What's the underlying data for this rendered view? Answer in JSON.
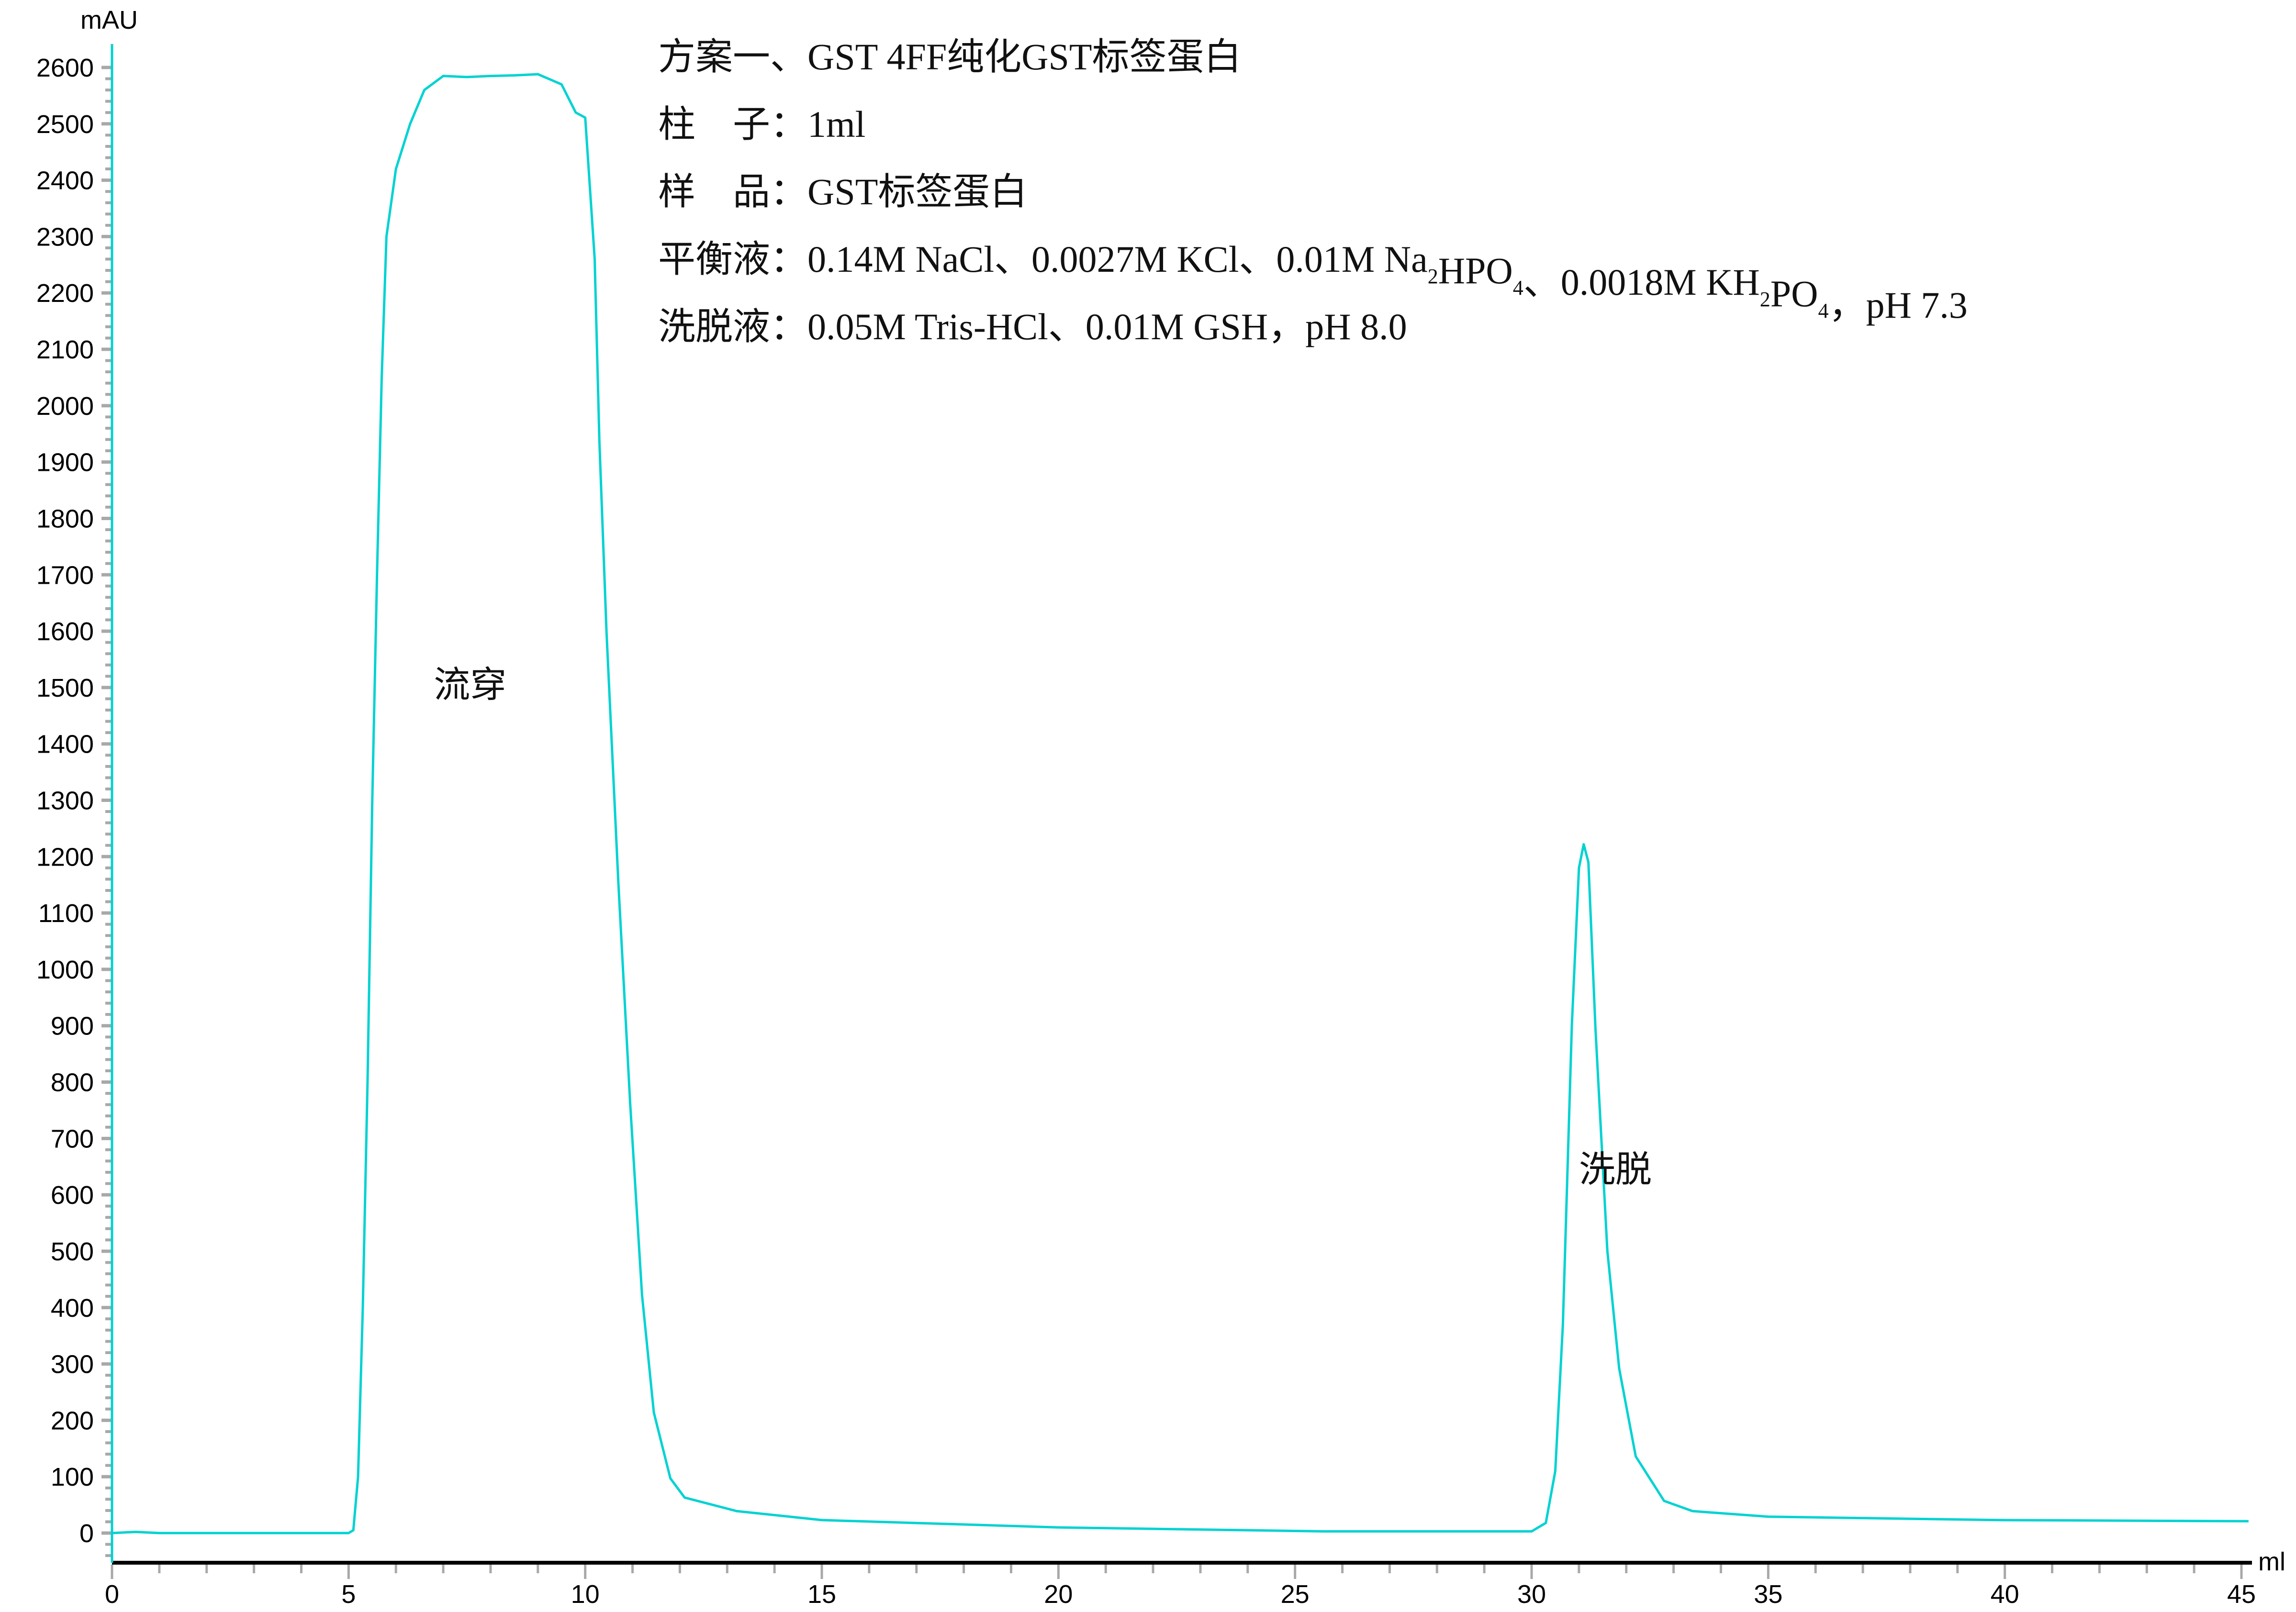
{
  "chart_data": {
    "type": "line",
    "title": "",
    "xlabel": "ml",
    "ylabel": "mAU",
    "xlim": [
      0,
      45
    ],
    "ylim": [
      0,
      2600
    ],
    "x_ticks": [
      0,
      5,
      10,
      15,
      20,
      25,
      30,
      35,
      40,
      45
    ],
    "y_ticks": [
      0,
      100,
      200,
      300,
      400,
      500,
      600,
      700,
      800,
      900,
      1000,
      1100,
      1200,
      1300,
      1400,
      1500,
      1600,
      1700,
      1800,
      1900,
      2000,
      2100,
      2200,
      2300,
      2400,
      2500,
      2600
    ],
    "grid": false,
    "line_color": "#00d2d2",
    "series": [
      {
        "x": [
          0,
          0.5,
          1,
          3,
          5,
          5.1,
          5.2,
          5.3,
          5.4,
          5.5,
          5.6,
          5.7,
          5.8,
          6.0,
          6.3,
          6.6,
          7,
          7.5,
          8,
          8.5,
          9,
          9.5,
          9.8,
          10.0,
          10.2,
          10.3,
          10.45,
          10.7,
          10.95,
          11.2,
          11.45,
          11.8,
          12.1,
          13.2,
          15,
          20,
          25.6,
          30,
          30.3,
          30.5,
          30.66,
          30.85,
          31.0,
          31.1,
          31.2,
          31.35,
          31.6,
          31.85,
          32.2,
          32.8,
          33.4,
          35,
          39.9,
          45.15
        ],
        "y": [
          0,
          2,
          0,
          0,
          0,
          5,
          100,
          400,
          800,
          1300,
          1700,
          2050,
          2300,
          2420,
          2500,
          2560,
          2585,
          2583,
          2585,
          2586,
          2588,
          2570,
          2520,
          2511,
          2261,
          1937,
          1598,
          1154,
          762,
          423,
          214,
          97,
          63,
          39,
          23,
          10,
          3,
          3,
          18,
          110,
          370,
          900,
          1180,
          1222,
          1190,
          893,
          501,
          292,
          136,
          57,
          39,
          29,
          23,
          21
        ]
      }
    ],
    "annotations": [
      {
        "text": "流穿",
        "x": 6.8,
        "y": 1500
      },
      {
        "text": "洗脱",
        "x": 31.0,
        "y": 640
      }
    ]
  },
  "info_block": [
    [
      {
        "t": "方案一、GST 4FF纯化GST标签蛋白"
      }
    ],
    [
      {
        "t": "柱　子：1ml"
      }
    ],
    [
      {
        "t": "样　品：GST标签蛋白"
      }
    ],
    [
      {
        "t": "平衡液：0.14M NaCl、0.0027M KCl、0.01M Na"
      },
      {
        "t": "2",
        "sub": true
      },
      {
        "t": "HPO"
      },
      {
        "t": "4",
        "sub": true
      },
      {
        "t": "、0.0018M KH"
      },
      {
        "t": "2",
        "sub": true
      },
      {
        "t": "PO"
      },
      {
        "t": "4",
        "sub": true
      },
      {
        "t": "，pH 7.3"
      }
    ],
    [
      {
        "t": "洗脱液：0.05M Tris-HCl、0.01M GSH，pH 8.0"
      }
    ]
  ]
}
